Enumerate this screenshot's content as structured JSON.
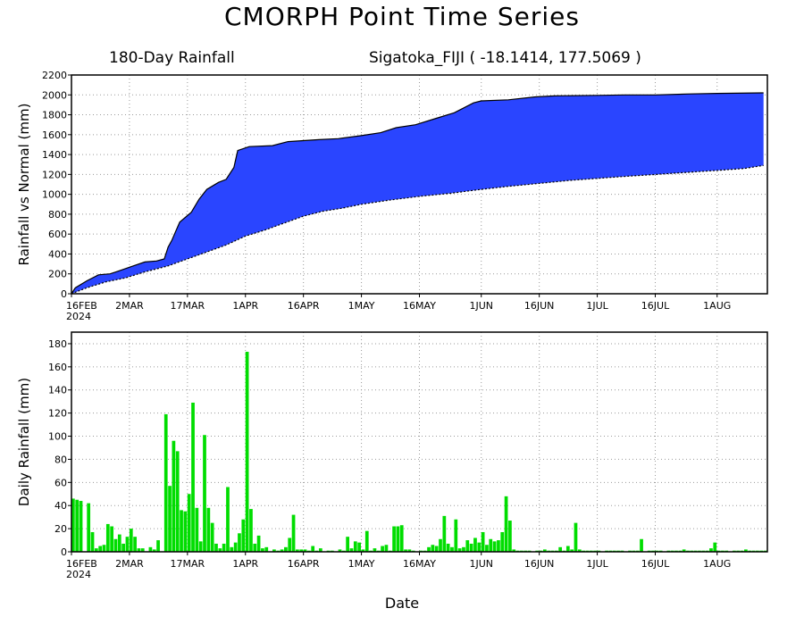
{
  "header": {
    "title": "CMORPH Point Time Series",
    "subtitle_left": "180-Day Rainfall",
    "subtitle_right": "Sigatoka_FIJI ( -18.1414, 177.5069 )"
  },
  "colors": {
    "band_fill": "#2a45ff",
    "bar_fill": "#00dd00",
    "grid": "#9a9a9a"
  },
  "chart_data": [
    {
      "type": "area",
      "title": "180-Day Rainfall",
      "ylabel": "Rainfall vs Normal (mm)",
      "xlabel": "",
      "ylim": [
        0,
        2200
      ],
      "yticks": [
        0,
        200,
        400,
        600,
        800,
        1000,
        1200,
        1400,
        1600,
        1800,
        2000,
        2200
      ],
      "x_tick_labels": [
        "16FEB",
        "2MAR",
        "17MAR",
        "1APR",
        "16APR",
        "1MAY",
        "16MAY",
        "1JUN",
        "16JUN",
        "1JUL",
        "16JUL",
        "1AUG"
      ],
      "x_first_tick_year": "2024",
      "grid": true,
      "series": [
        {
          "name": "",
          "points": [
            [
              "2024-02-16",
              0
            ],
            [
              "2024-02-17",
              60
            ],
            [
              "2024-02-20",
              130
            ],
            [
              "2024-02-23",
              190
            ],
            [
              "2024-02-26",
              200
            ],
            [
              "2024-02-29",
              240
            ],
            [
              "2024-03-03",
              280
            ],
            [
              "2024-03-06",
              320
            ],
            [
              "2024-03-09",
              330
            ],
            [
              "2024-03-11",
              350
            ],
            [
              "2024-03-12",
              470
            ],
            [
              "2024-03-13",
              540
            ],
            [
              "2024-03-14",
              630
            ],
            [
              "2024-03-15",
              720
            ],
            [
              "2024-03-18",
              820
            ],
            [
              "2024-03-20",
              950
            ],
            [
              "2024-03-22",
              1050
            ],
            [
              "2024-03-25",
              1120
            ],
            [
              "2024-03-27",
              1150
            ],
            [
              "2024-03-29",
              1270
            ],
            [
              "2024-03-30",
              1440
            ],
            [
              "2024-04-02",
              1480
            ],
            [
              "2024-04-08",
              1490
            ],
            [
              "2024-04-12",
              1530
            ],
            [
              "2024-04-20",
              1550
            ],
            [
              "2024-04-25",
              1560
            ],
            [
              "2024-05-01",
              1590
            ],
            [
              "2024-05-06",
              1620
            ],
            [
              "2024-05-10",
              1670
            ],
            [
              "2024-05-15",
              1700
            ],
            [
              "2024-05-20",
              1760
            ],
            [
              "2024-05-25",
              1820
            ],
            [
              "2024-05-30",
              1920
            ],
            [
              "2024-06-01",
              1940
            ],
            [
              "2024-06-08",
              1950
            ],
            [
              "2024-06-15",
              1980
            ],
            [
              "2024-06-20",
              1990
            ],
            [
              "2024-07-01",
              1995
            ],
            [
              "2024-07-08",
              2000
            ],
            [
              "2024-07-16",
              2000
            ],
            [
              "2024-07-25",
              2010
            ],
            [
              "2024-08-01",
              2015
            ],
            [
              "2024-08-13",
              2020
            ]
          ]
        },
        {
          "name": "",
          "points": [
            [
              "2024-02-16",
              0
            ],
            [
              "2024-02-20",
              60
            ],
            [
              "2024-02-25",
              120
            ],
            [
              "2024-03-01",
              160
            ],
            [
              "2024-03-06",
              220
            ],
            [
              "2024-03-12",
              280
            ],
            [
              "2024-03-17",
              350
            ],
            [
              "2024-03-22",
              420
            ],
            [
              "2024-03-27",
              490
            ],
            [
              "2024-04-01",
              580
            ],
            [
              "2024-04-06",
              640
            ],
            [
              "2024-04-11",
              710
            ],
            [
              "2024-04-16",
              780
            ],
            [
              "2024-04-21",
              830
            ],
            [
              "2024-04-26",
              860
            ],
            [
              "2024-05-01",
              900
            ],
            [
              "2024-05-08",
              940
            ],
            [
              "2024-05-16",
              980
            ],
            [
              "2024-05-24",
              1010
            ],
            [
              "2024-06-01",
              1050
            ],
            [
              "2024-06-08",
              1080
            ],
            [
              "2024-06-16",
              1110
            ],
            [
              "2024-06-24",
              1140
            ],
            [
              "2024-07-01",
              1160
            ],
            [
              "2024-07-08",
              1180
            ],
            [
              "2024-07-16",
              1200
            ],
            [
              "2024-07-24",
              1220
            ],
            [
              "2024-08-01",
              1240
            ],
            [
              "2024-08-08",
              1260
            ],
            [
              "2024-08-13",
              1290
            ]
          ]
        }
      ]
    },
    {
      "type": "bar",
      "ylabel": "Daily Rainfall (mm)",
      "xlabel": "Date",
      "ylim": [
        0,
        190
      ],
      "yticks": [
        0,
        20,
        40,
        60,
        80,
        100,
        120,
        140,
        160,
        180
      ],
      "x_tick_labels": [
        "16FEB",
        "2MAR",
        "17MAR",
        "1APR",
        "16APR",
        "1MAY",
        "16MAY",
        "1JUN",
        "16JUN",
        "1JUL",
        "16JUL",
        "1AUG"
      ],
      "x_first_tick_year": "2024",
      "grid": true,
      "start_date": "2024-02-16",
      "values": [
        46,
        45,
        44,
        0,
        42,
        17,
        3,
        5,
        6,
        24,
        22,
        11,
        15,
        7,
        13,
        20,
        13,
        3,
        3,
        0,
        4,
        2,
        10,
        0,
        119,
        57,
        96,
        87,
        36,
        35,
        50,
        129,
        38,
        9,
        101,
        38,
        25,
        7,
        3,
        7,
        56,
        4,
        8,
        16,
        28,
        173,
        37,
        7,
        14,
        3,
        4,
        0,
        2,
        1,
        2,
        4,
        12,
        32,
        2,
        2,
        2,
        1,
        5,
        1,
        3,
        0,
        1,
        1,
        0,
        2,
        1,
        13,
        3,
        9,
        8,
        2,
        18,
        1,
        3,
        1,
        5,
        6,
        1,
        22,
        22,
        23,
        2,
        2,
        1,
        0,
        1,
        1,
        4,
        6,
        5,
        11,
        31,
        7,
        4,
        28,
        3,
        4,
        10,
        7,
        12,
        8,
        17,
        6,
        11,
        9,
        10,
        17,
        48,
        27,
        2,
        1,
        1,
        1,
        1,
        0,
        1,
        1,
        2,
        1,
        1,
        1,
        4,
        1,
        5,
        2,
        25,
        2,
        1,
        1,
        1,
        1,
        1,
        0,
        1,
        1,
        1,
        1,
        1,
        0,
        1,
        1,
        1,
        11,
        0,
        1,
        1,
        1,
        1,
        0,
        1,
        1,
        1,
        1,
        2,
        1,
        1,
        1,
        1,
        1,
        1,
        3,
        8,
        1,
        1,
        1,
        0,
        1,
        1,
        1,
        2,
        1,
        1,
        1,
        1,
        1
      ]
    }
  ]
}
